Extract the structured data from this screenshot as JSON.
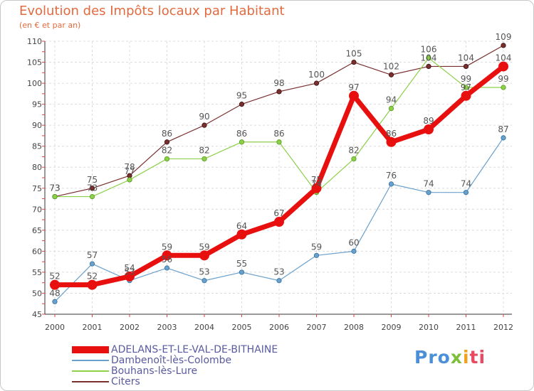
{
  "chart_data": {
    "type": "line",
    "title": "Evolution des Impôts locaux par Habitant",
    "subtitle": "(en € et par an)",
    "xlabel": "",
    "ylabel": "",
    "ylim": [
      45,
      110
    ],
    "y_ticks": [
      45,
      50,
      55,
      60,
      65,
      70,
      75,
      80,
      85,
      90,
      95,
      100,
      105,
      110
    ],
    "categories": [
      "2000",
      "2001",
      "2002",
      "2003",
      "2004",
      "2005",
      "2006",
      "2007",
      "2008",
      "2009",
      "2010",
      "2011",
      "2012"
    ],
    "series": [
      {
        "name": "ADELANS-ET-LE-VAL-DE-BITHAINE",
        "color": "#e8100f",
        "values": [
          52,
          52,
          54,
          59,
          59,
          64,
          67,
          75,
          97,
          86,
          89,
          97,
          104
        ]
      },
      {
        "name": "Dambenoît-lès-Colombe",
        "color": "#6aa0cc",
        "values": [
          48,
          57,
          53,
          56,
          53,
          55,
          53,
          59,
          60,
          76,
          74,
          74,
          87
        ]
      },
      {
        "name": "Bouhans-lès-Lure",
        "color": "#8ed04a",
        "values": [
          73,
          73,
          77,
          82,
          82,
          86,
          86,
          74,
          82,
          94,
          106,
          99,
          99
        ]
      },
      {
        "name": "Citers",
        "color": "#7a2f2f",
        "values": [
          73,
          75,
          78,
          86,
          90,
          95,
          98,
          100,
          105,
          102,
          104,
          104,
          109
        ]
      }
    ],
    "legend_position": "bottom-left"
  },
  "brand": {
    "part1": "Pro",
    "part2": "x",
    "part3": "i",
    "part4": "ti"
  }
}
